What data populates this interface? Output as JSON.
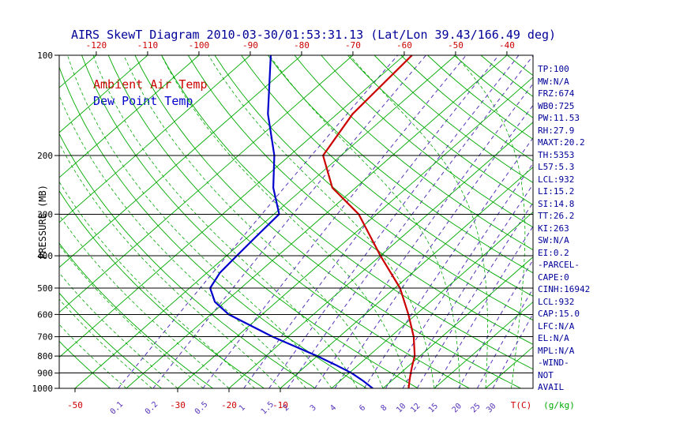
{
  "title": "AIRS SkewT Diagram 2010-03-30/01:53:31.13 (Lat/Lon 39.43/166.49 deg)",
  "legend": {
    "ambient": "Ambient Air Temp",
    "dew": "Dew Point Temp"
  },
  "axes": {
    "pressure_label": "PRESSURE (MB)",
    "temp_unit_label": "T(C)",
    "mixing_unit_label": "(g/kg)",
    "pressure_ticks": [
      100,
      200,
      300,
      400,
      500,
      600,
      700,
      800,
      900,
      1000
    ],
    "top_temp_ticks_c": [
      -120,
      -110,
      -100,
      -90,
      -80,
      -70,
      -60,
      -50,
      -40
    ],
    "bottom_temp_ticks_c": [
      -50,
      -30,
      -20,
      -10
    ],
    "mixing_ratio_labels_gkg": [
      0.1,
      0.2,
      0.5,
      1,
      1.5,
      2,
      3,
      4,
      6,
      8,
      10,
      12,
      15,
      20,
      25,
      30
    ]
  },
  "colors": {
    "title": "#000099",
    "green_lines": "#00AA00",
    "purple_lines": "#5533BB",
    "temp_red": "#CC0000",
    "dew_blue": "#0000CC",
    "axis_black": "#000000",
    "panel_text": "#000099"
  },
  "right_panel": {
    "lines": [
      "TP:100",
      "MW:N/A",
      "FRZ:674",
      "WB0:725",
      "PW:11.53",
      "RH:27.9",
      "MAXT:20.2",
      "TH:5353",
      "L57:5.3",
      "LCL:932",
      "LI:15.2",
      "SI:14.8",
      "TT:26.2",
      "KI:263",
      "SW:N/A",
      "EI:0.2",
      "-PARCEL-",
      "CAPE:0",
      "CINH:16942",
      "LCL:932",
      "CAP:15.0",
      "LFC:N/A",
      "EL:N/A",
      "MPL:N/A",
      "-WIND-",
      "NOT",
      "AVAIL"
    ]
  },
  "chart_data": {
    "type": "line",
    "title": "AIRS SkewT Diagram 2010-03-30/01:53:31.13 (Lat/Lon 39.43/166.49 deg)",
    "x_axis_label": "T(C)",
    "y_axis_label": "PRESSURE (MB)",
    "pressure_scale": "log",
    "pressure_range_mb": [
      100,
      1000
    ],
    "skew": "isotherms slanted 45 degrees up-right",
    "series": [
      {
        "name": "Ambient Air Temp",
        "color": "#CC0000",
        "points_p_mb_t_c": [
          [
            100,
            -58.5
          ],
          [
            150,
            -57
          ],
          [
            200,
            -53.5
          ],
          [
            250,
            -44.5
          ],
          [
            300,
            -33.5
          ],
          [
            400,
            -20
          ],
          [
            500,
            -9
          ],
          [
            600,
            -1.5
          ],
          [
            700,
            4.5
          ],
          [
            800,
            9
          ],
          [
            850,
            10.5
          ],
          [
            900,
            12
          ],
          [
            950,
            13.5
          ],
          [
            1000,
            15
          ]
        ]
      },
      {
        "name": "Dew Point Temp",
        "color": "#0000CC",
        "points_p_mb_t_c": [
          [
            100,
            -86
          ],
          [
            150,
            -73.5
          ],
          [
            200,
            -63
          ],
          [
            250,
            -56
          ],
          [
            300,
            -49
          ],
          [
            350,
            -48.5
          ],
          [
            400,
            -48
          ],
          [
            450,
            -47.5
          ],
          [
            500,
            -46
          ],
          [
            550,
            -42
          ],
          [
            600,
            -36.5
          ],
          [
            700,
            -23
          ],
          [
            800,
            -10
          ],
          [
            850,
            -4.5
          ],
          [
            900,
            0.5
          ],
          [
            950,
            4.5
          ],
          [
            1000,
            8
          ]
        ]
      }
    ],
    "reference_lines": {
      "isotherms_c": {
        "min": -160,
        "max": 40,
        "step": 10
      },
      "dry_adiabats_theta_k": {
        "min": 220,
        "max": 500,
        "step": 10
      },
      "moist_adiabats_start_t_c": {
        "min": -40,
        "max": 40,
        "step": 5
      },
      "mixing_ratio_gkg": [
        0.1,
        0.2,
        0.5,
        1,
        1.5,
        2,
        3,
        4,
        6,
        8,
        10,
        12,
        15,
        20,
        25,
        30
      ]
    },
    "legend_position": "top-left inside plot"
  }
}
